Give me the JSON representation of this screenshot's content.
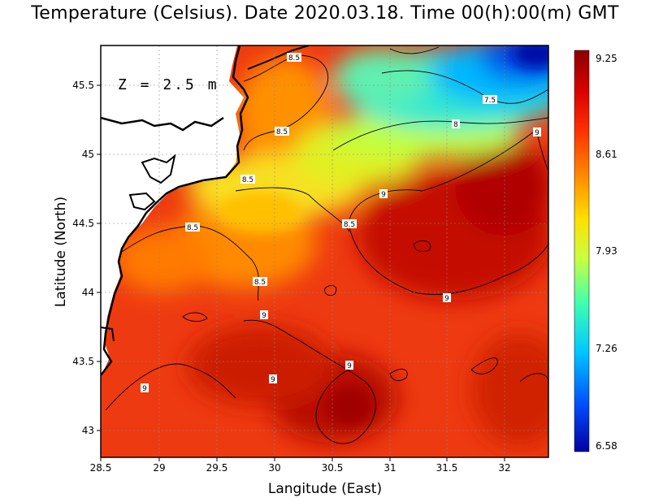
{
  "title": "Temperature (Celsius). Date 2020.03.18. Time 00(h):00(m)  GMT",
  "depth_label": "Z = 2.5 m",
  "x_axis": {
    "title": "Langitude (East)",
    "ticks": [
      "28.5",
      "29",
      "29.5",
      "30",
      "30.5",
      "31",
      "31.5",
      "32"
    ]
  },
  "y_axis": {
    "title": "Latitude (North)",
    "ticks": [
      "45.5",
      "45",
      "44.5",
      "44",
      "43.5",
      "43"
    ]
  },
  "colorbar": {
    "min": 6.58,
    "max": 9.25,
    "labels": [
      "9.25",
      "8.61",
      "7.93",
      "7.26",
      "6.58"
    ],
    "colors": [
      "#0000a0",
      "#0050ff",
      "#00c8ff",
      "#40ffb0",
      "#c8ff40",
      "#ffe000",
      "#ff9000",
      "#ff3000",
      "#d80000",
      "#8a0000"
    ]
  },
  "contour_labels": [
    "8.5",
    "8.5",
    "8.5",
    "8.5",
    "8.5",
    "8.5",
    "7.5",
    "8",
    "9",
    "9",
    "9",
    "9",
    "9",
    "9",
    "9"
  ],
  "colors": {
    "land": "#ffffff",
    "coastline": "#000000",
    "warm_sea": "#e83010",
    "cold_sea": "#1050f0"
  }
}
